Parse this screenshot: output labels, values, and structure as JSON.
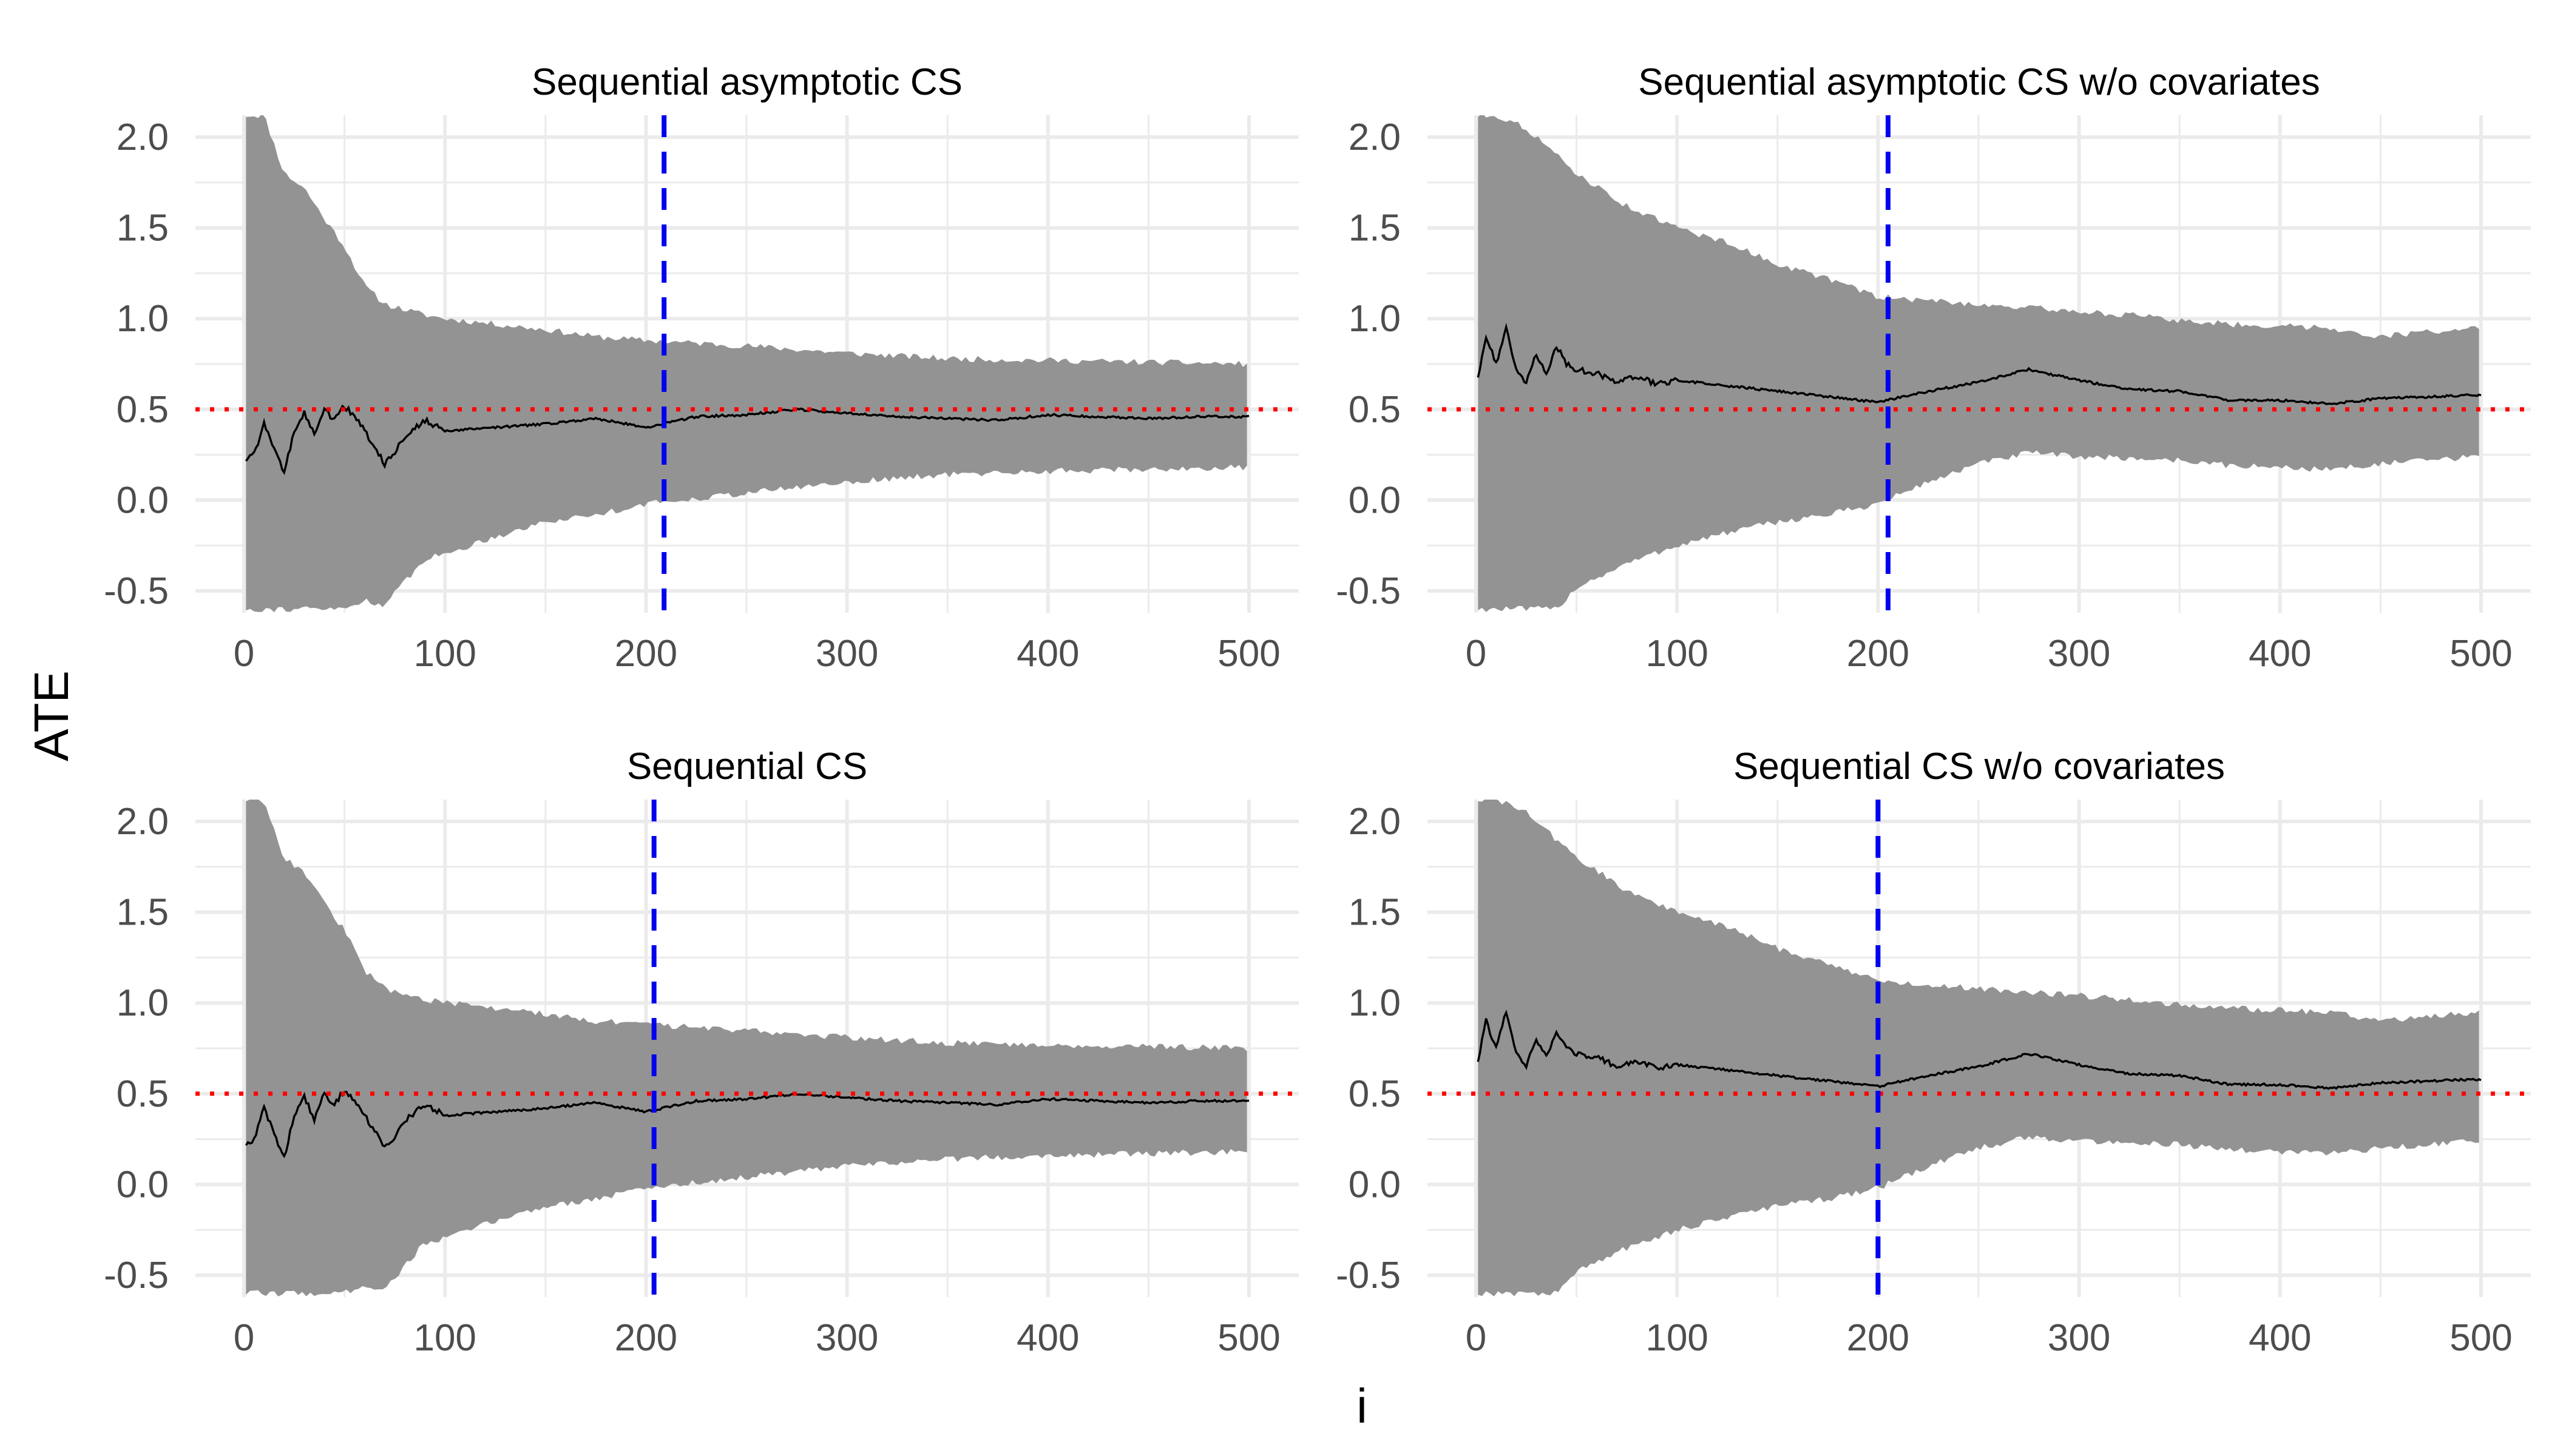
{
  "figure": {
    "ylabel": "ATE",
    "xlabel": "i"
  },
  "style": {
    "band_color": "#939393",
    "estimate_color": "#000000",
    "true_value_color": "#ff0000",
    "stop_line_color": "#0000ee",
    "grid_color": "#ebebeb",
    "tick_label_color": "#4d4d4d"
  },
  "chart_data": [
    {
      "type": "area",
      "title": "Sequential asymptotic CS",
      "xlim": [
        0,
        500
      ],
      "ylim": [
        -0.5,
        2.0
      ],
      "x_ticks": [
        0,
        100,
        200,
        300,
        400,
        500
      ],
      "x_tick_labels": [
        "0",
        "100",
        "200",
        "300",
        "400",
        "500"
      ],
      "y_ticks": [
        -0.5,
        0.0,
        0.5,
        1.0,
        1.5,
        2.0
      ],
      "y_tick_labels": [
        "-0.5",
        "0.0",
        "0.5",
        "1.0",
        "1.5",
        "2.0"
      ],
      "true_value": 0.5,
      "stopping_time": 209,
      "series": [
        {
          "role": "cs_upper",
          "x": [
            1,
            10,
            20,
            30,
            40,
            50,
            60,
            70,
            80,
            90,
            100,
            125,
            150,
            175,
            200,
            250,
            300,
            350,
            400,
            450,
            500
          ],
          "values": [
            2.12,
            2.12,
            1.8,
            1.72,
            1.55,
            1.4,
            1.18,
            1.08,
            1.05,
            1.02,
            1.0,
            0.97,
            0.94,
            0.9,
            0.88,
            0.85,
            0.81,
            0.78,
            0.77,
            0.76,
            0.75
          ]
        },
        {
          "role": "cs_lower",
          "x": [
            1,
            10,
            20,
            30,
            40,
            50,
            60,
            70,
            80,
            90,
            100,
            125,
            150,
            175,
            200,
            250,
            300,
            350,
            400,
            450,
            500
          ],
          "values": [
            -0.6,
            -0.6,
            -0.6,
            -0.6,
            -0.6,
            -0.6,
            -0.55,
            -0.58,
            -0.45,
            -0.32,
            -0.3,
            -0.2,
            -0.12,
            -0.08,
            -0.02,
            0.04,
            0.1,
            0.14,
            0.16,
            0.17,
            0.18
          ]
        },
        {
          "role": "estimate",
          "x": [
            1,
            5,
            10,
            15,
            20,
            25,
            30,
            35,
            40,
            45,
            50,
            55,
            60,
            65,
            70,
            75,
            80,
            90,
            100,
            125,
            150,
            175,
            200,
            225,
            250,
            275,
            300,
            325,
            350,
            375,
            400,
            425,
            450,
            475,
            500
          ],
          "values": [
            0.22,
            0.25,
            0.42,
            0.28,
            0.15,
            0.38,
            0.48,
            0.36,
            0.5,
            0.44,
            0.52,
            0.46,
            0.38,
            0.3,
            0.2,
            0.26,
            0.35,
            0.44,
            0.38,
            0.4,
            0.42,
            0.45,
            0.4,
            0.46,
            0.47,
            0.5,
            0.48,
            0.46,
            0.45,
            0.44,
            0.47,
            0.46,
            0.45,
            0.46,
            0.46
          ]
        }
      ]
    },
    {
      "type": "area",
      "title": "Sequential asymptotic CS w/o covariates",
      "xlim": [
        0,
        500
      ],
      "ylim": [
        -0.5,
        2.0
      ],
      "x_ticks": [
        0,
        100,
        200,
        300,
        400,
        500
      ],
      "x_tick_labels": [
        "0",
        "100",
        "200",
        "300",
        "400",
        "500"
      ],
      "y_ticks": [
        -0.5,
        0.0,
        0.5,
        1.0,
        1.5,
        2.0
      ],
      "y_tick_labels": [
        "-0.5",
        "0.0",
        "0.5",
        "1.0",
        "1.5",
        "2.0"
      ],
      "true_value": 0.5,
      "stopping_time": 205,
      "series": [
        {
          "role": "cs_upper",
          "x": [
            1,
            10,
            25,
            50,
            75,
            100,
            125,
            150,
            175,
            200,
            225,
            250,
            275,
            300,
            325,
            350,
            375,
            400,
            425,
            450,
            475,
            500
          ],
          "values": [
            2.12,
            2.12,
            2.05,
            1.8,
            1.62,
            1.5,
            1.42,
            1.3,
            1.22,
            1.12,
            1.1,
            1.08,
            1.06,
            1.04,
            1.02,
            0.99,
            0.97,
            0.96,
            0.95,
            0.9,
            0.93,
            0.95
          ]
        },
        {
          "role": "cs_lower",
          "x": [
            1,
            25,
            40,
            50,
            75,
            100,
            125,
            150,
            175,
            200,
            225,
            250,
            275,
            300,
            325,
            350,
            375,
            400,
            425,
            450,
            475,
            500
          ],
          "values": [
            -0.6,
            -0.6,
            -0.6,
            -0.48,
            -0.35,
            -0.25,
            -0.18,
            -0.12,
            -0.08,
            -0.02,
            0.1,
            0.2,
            0.26,
            0.24,
            0.23,
            0.22,
            0.19,
            0.18,
            0.17,
            0.2,
            0.22,
            0.24
          ]
        },
        {
          "role": "estimate",
          "x": [
            1,
            5,
            10,
            15,
            20,
            25,
            30,
            35,
            40,
            45,
            50,
            60,
            70,
            80,
            90,
            100,
            125,
            150,
            175,
            200,
            225,
            250,
            275,
            300,
            325,
            350,
            375,
            400,
            425,
            450,
            475,
            500
          ],
          "values": [
            0.68,
            0.9,
            0.75,
            0.95,
            0.72,
            0.65,
            0.8,
            0.7,
            0.85,
            0.75,
            0.72,
            0.7,
            0.65,
            0.68,
            0.64,
            0.66,
            0.63,
            0.6,
            0.57,
            0.54,
            0.6,
            0.65,
            0.72,
            0.66,
            0.61,
            0.6,
            0.55,
            0.55,
            0.53,
            0.56,
            0.57,
            0.58
          ]
        }
      ]
    },
    {
      "type": "area",
      "title": "Sequential CS",
      "xlim": [
        0,
        500
      ],
      "ylim": [
        -0.5,
        2.0
      ],
      "x_ticks": [
        0,
        100,
        200,
        300,
        400,
        500
      ],
      "x_tick_labels": [
        "0",
        "100",
        "200",
        "300",
        "400",
        "500"
      ],
      "y_ticks": [
        -0.5,
        0.0,
        0.5,
        1.0,
        1.5,
        2.0
      ],
      "y_tick_labels": [
        "-0.5",
        "0.0",
        "0.5",
        "1.0",
        "1.5",
        "2.0"
      ],
      "true_value": 0.5,
      "stopping_time": 204,
      "series": [
        {
          "role": "cs_upper",
          "x": [
            1,
            10,
            20,
            30,
            40,
            50,
            60,
            70,
            80,
            90,
            100,
            125,
            150,
            175,
            200,
            250,
            300,
            350,
            400,
            450,
            500
          ],
          "values": [
            2.12,
            2.12,
            1.8,
            1.72,
            1.55,
            1.4,
            1.18,
            1.08,
            1.05,
            1.02,
            1.0,
            0.97,
            0.94,
            0.9,
            0.88,
            0.85,
            0.81,
            0.78,
            0.77,
            0.76,
            0.75
          ]
        },
        {
          "role": "cs_lower",
          "x": [
            1,
            10,
            20,
            30,
            40,
            50,
            60,
            70,
            80,
            90,
            100,
            125,
            150,
            175,
            200,
            250,
            300,
            350,
            400,
            450,
            500
          ],
          "values": [
            -0.6,
            -0.6,
            -0.6,
            -0.6,
            -0.6,
            -0.6,
            -0.55,
            -0.58,
            -0.45,
            -0.32,
            -0.3,
            -0.2,
            -0.12,
            -0.08,
            -0.02,
            0.04,
            0.1,
            0.14,
            0.16,
            0.17,
            0.18
          ]
        },
        {
          "role": "estimate",
          "x": [
            1,
            5,
            10,
            15,
            20,
            25,
            30,
            35,
            40,
            45,
            50,
            55,
            60,
            65,
            70,
            75,
            80,
            90,
            100,
            125,
            150,
            175,
            200,
            225,
            250,
            275,
            300,
            325,
            350,
            375,
            400,
            425,
            450,
            475,
            500
          ],
          "values": [
            0.22,
            0.25,
            0.42,
            0.28,
            0.15,
            0.38,
            0.48,
            0.36,
            0.5,
            0.44,
            0.52,
            0.46,
            0.38,
            0.3,
            0.2,
            0.26,
            0.35,
            0.44,
            0.38,
            0.4,
            0.42,
            0.45,
            0.4,
            0.46,
            0.47,
            0.5,
            0.48,
            0.46,
            0.45,
            0.44,
            0.47,
            0.46,
            0.45,
            0.46,
            0.46
          ]
        }
      ]
    },
    {
      "type": "area",
      "title": "Sequential CS w/o covariates",
      "xlim": [
        0,
        500
      ],
      "ylim": [
        -0.5,
        2.0
      ],
      "x_ticks": [
        0,
        100,
        200,
        300,
        400,
        500
      ],
      "x_tick_labels": [
        "0",
        "100",
        "200",
        "300",
        "400",
        "500"
      ],
      "y_ticks": [
        -0.5,
        0.0,
        0.5,
        1.0,
        1.5,
        2.0
      ],
      "y_tick_labels": [
        "-0.5",
        "0.0",
        "0.5",
        "1.0",
        "1.5",
        "2.0"
      ],
      "true_value": 0.5,
      "stopping_time": 200,
      "series": [
        {
          "role": "cs_upper",
          "x": [
            1,
            10,
            25,
            50,
            75,
            100,
            125,
            150,
            175,
            200,
            225,
            250,
            275,
            300,
            325,
            350,
            375,
            400,
            425,
            450,
            475,
            500
          ],
          "values": [
            2.12,
            2.12,
            2.05,
            1.8,
            1.62,
            1.5,
            1.42,
            1.3,
            1.22,
            1.12,
            1.1,
            1.08,
            1.06,
            1.04,
            1.02,
            0.99,
            0.97,
            0.96,
            0.95,
            0.9,
            0.93,
            0.95
          ]
        },
        {
          "role": "cs_lower",
          "x": [
            1,
            25,
            40,
            50,
            75,
            100,
            125,
            150,
            175,
            200,
            225,
            250,
            275,
            300,
            325,
            350,
            375,
            400,
            425,
            450,
            475,
            500
          ],
          "values": [
            -0.6,
            -0.6,
            -0.6,
            -0.48,
            -0.35,
            -0.25,
            -0.18,
            -0.12,
            -0.08,
            -0.02,
            0.1,
            0.2,
            0.26,
            0.24,
            0.23,
            0.22,
            0.19,
            0.18,
            0.17,
            0.2,
            0.22,
            0.24
          ]
        },
        {
          "role": "estimate",
          "x": [
            1,
            5,
            10,
            15,
            20,
            25,
            30,
            35,
            40,
            45,
            50,
            60,
            70,
            80,
            90,
            100,
            125,
            150,
            175,
            200,
            225,
            250,
            275,
            300,
            325,
            350,
            375,
            400,
            425,
            450,
            475,
            500
          ],
          "values": [
            0.68,
            0.9,
            0.75,
            0.95,
            0.72,
            0.65,
            0.8,
            0.7,
            0.85,
            0.75,
            0.72,
            0.7,
            0.65,
            0.68,
            0.64,
            0.66,
            0.63,
            0.6,
            0.57,
            0.54,
            0.6,
            0.65,
            0.72,
            0.66,
            0.61,
            0.6,
            0.55,
            0.55,
            0.53,
            0.56,
            0.57,
            0.58
          ]
        }
      ]
    }
  ]
}
